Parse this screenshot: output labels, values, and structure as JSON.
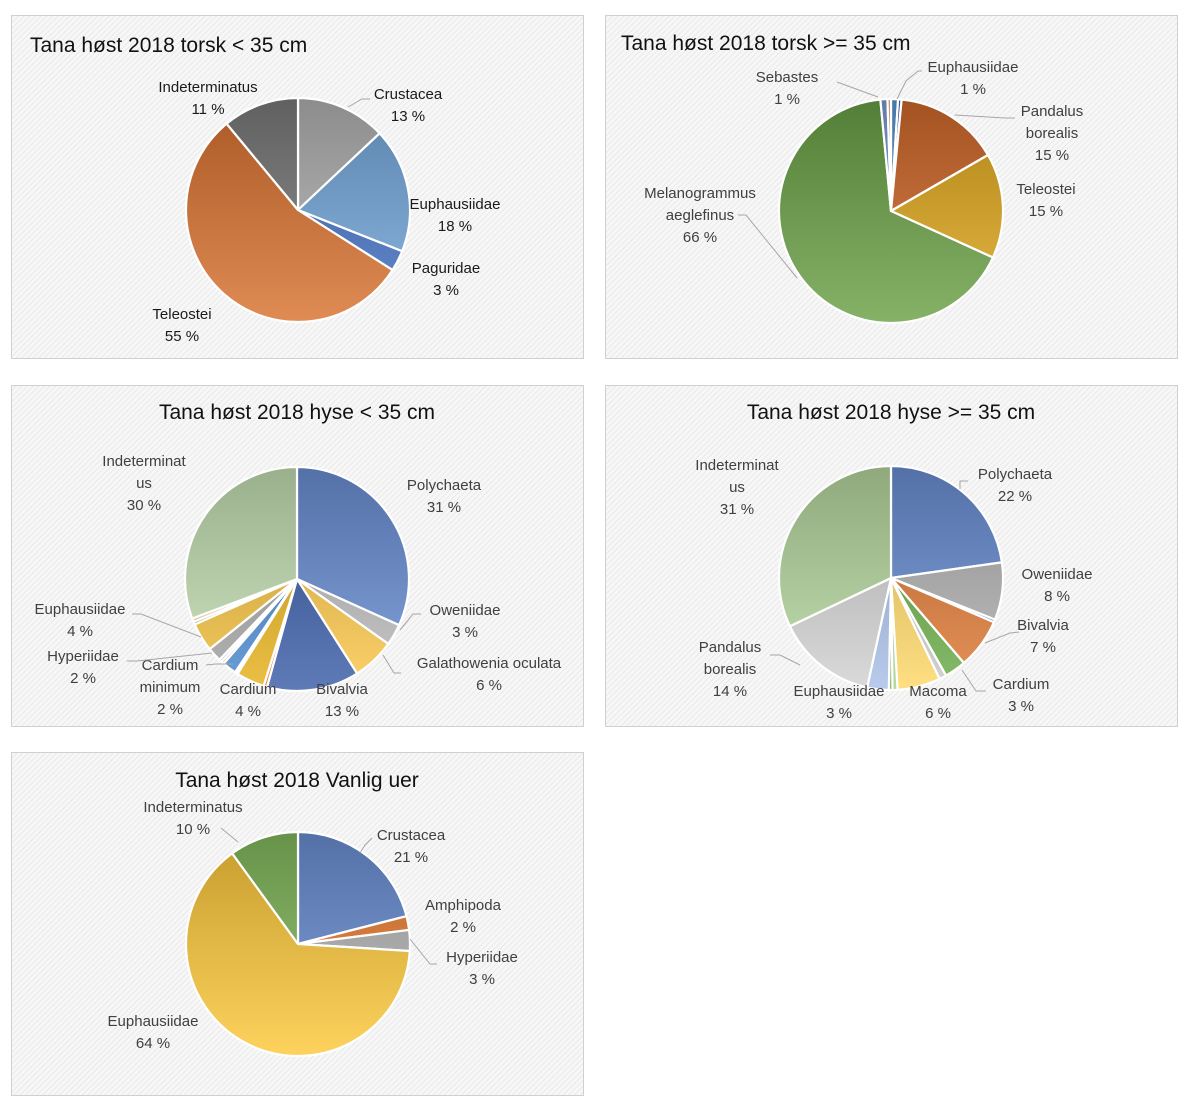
{
  "chart_data": [
    {
      "type": "pie",
      "title": "Tana høst 2018 torsk < 35 cm",
      "slices": [
        {
          "label": "Crustacea",
          "value": 13,
          "value_label": "13 %",
          "color": "#b4b4b4"
        },
        {
          "label": "Euphausiidae",
          "value": 18,
          "value_label": "18 %",
          "color": "#74a8dc"
        },
        {
          "label": "Paguridae",
          "value": 3,
          "value_label": "3 %",
          "color": "#4472c4"
        },
        {
          "label": "Teleostei",
          "value": 55,
          "value_label": "55 %",
          "color": "#d9712f"
        },
        {
          "label": "Indeterminatus",
          "value": 11,
          "value_label": "11 %",
          "color": "#7b7b7b"
        }
      ]
    },
    {
      "type": "pie",
      "title": "Tana høst 2018 torsk >= 35 cm",
      "slices": [
        {
          "label": "Euphausiidae",
          "value": 1,
          "value_label": "1 %",
          "color": "#5b9bd5"
        },
        {
          "label": "",
          "value": 0.5,
          "value_label": "",
          "color": "#4472c4"
        },
        {
          "label": "Pandalus borealis",
          "value": 15,
          "value_label": "15 %",
          "color": "#d2692a"
        },
        {
          "label": "Teleostei",
          "value": 15,
          "value_label": "15 %",
          "color": "#e0a91c"
        },
        {
          "label": "Melanogrammus aeglefinus",
          "value": 66,
          "value_label": "66 %",
          "color": "#6aa146"
        },
        {
          "label": "Sebastes",
          "value": 1,
          "value_label": "1 %",
          "color": "#7c9fd9"
        },
        {
          "label": "",
          "value": 0.5,
          "value_label": "",
          "color": "#f4b183"
        }
      ]
    },
    {
      "type": "pie",
      "title": "Tana høst 2018 hyse < 35 cm",
      "slices": [
        {
          "label": "Polychaeta",
          "value": 31,
          "value_label": "31 %",
          "color": "#6a8fd6"
        },
        {
          "label": "Oweniidae",
          "value": 3,
          "value_label": "3 %",
          "color": "#bdbdbd"
        },
        {
          "label": "Galathowenia oculata",
          "value": 6,
          "value_label": "6 %",
          "color": "#fcc84a"
        },
        {
          "label": "Bivalvia",
          "value": 13,
          "value_label": "13 %",
          "color": "#3b5ea8"
        },
        {
          "label": "",
          "value": 0.5,
          "value_label": "",
          "color": "#ed7d31"
        },
        {
          "label": "Cardium",
          "value": 4,
          "value_label": "4 %",
          "color": "#e8b21c"
        },
        {
          "label": "",
          "value": 0.4,
          "value_label": "",
          "color": "#ffffff"
        },
        {
          "label": "Cardium minimum",
          "value": 2,
          "value_label": "2 %",
          "color": "#4a8ad0"
        },
        {
          "label": "",
          "value": 0.4,
          "value_label": "",
          "color": "#f4b183"
        },
        {
          "label": "",
          "value": 0.4,
          "value_label": "",
          "color": "#9dc3e6"
        },
        {
          "label": "Hyperiidae",
          "value": 2,
          "value_label": "2 %",
          "color": "#a5a5a5"
        },
        {
          "label": "Euphausiidae",
          "value": 4,
          "value_label": "4 %",
          "color": "#f2c03d"
        },
        {
          "label": "",
          "value": 0.4,
          "value_label": "",
          "color": "#70ad47"
        },
        {
          "label": "",
          "value": 0.5,
          "value_label": "",
          "color": "#f8cbad"
        },
        {
          "label": "Indeterminatus",
          "value": 30,
          "value_label": "30 %",
          "color": "#c5e0b4"
        }
      ]
    },
    {
      "type": "pie",
      "title": "Tana høst 2018 hyse >= 35 cm",
      "slices": [
        {
          "label": "Polychaeta",
          "value": 22,
          "value_label": "22 %",
          "color": "#6a8fd6"
        },
        {
          "label": "Oweniidae",
          "value": 8,
          "value_label": "8 %",
          "color": "#b3b3b3"
        },
        {
          "label": "",
          "value": 0.4,
          "value_label": "",
          "color": "#4472c4"
        },
        {
          "label": "Bivalvia",
          "value": 7,
          "value_label": "7 %",
          "color": "#e07a36"
        },
        {
          "label": "Cardium",
          "value": 3,
          "value_label": "3 %",
          "color": "#6aad48"
        },
        {
          "label": "",
          "value": 1,
          "value_label": "",
          "color": "#c9c9c9"
        },
        {
          "label": "Macoma",
          "value": 6,
          "value_label": "6 %",
          "color": "#ffd866"
        },
        {
          "label": "",
          "value": 0.7,
          "value_label": "",
          "color": "#a9d18e"
        },
        {
          "label": "",
          "value": 0.5,
          "value_label": "",
          "color": "#70ad47"
        },
        {
          "label": "Euphausiidae",
          "value": 3,
          "value_label": "3 %",
          "color": "#a9c0e8"
        },
        {
          "label": "Pandalus borealis",
          "value": 14,
          "value_label": "14 %",
          "color": "#d2d2d2"
        },
        {
          "label": "Indeterminatus",
          "value": 31,
          "value_label": "31 %",
          "color": "#b7d9a0"
        }
      ]
    },
    {
      "type": "pie",
      "title": "Tana høst 2018 Vanlig uer",
      "slices": [
        {
          "label": "Crustacea",
          "value": 21,
          "value_label": "21 %",
          "color": "#6a8fd6"
        },
        {
          "label": "Amphipoda",
          "value": 2,
          "value_label": "2 %",
          "color": "#ed7d31"
        },
        {
          "label": "Hyperiidae",
          "value": 3,
          "value_label": "3 %",
          "color": "#b5b5b5"
        },
        {
          "label": "Euphausiidae",
          "value": 64,
          "value_label": "64 %",
          "color": "#fdc83a"
        },
        {
          "label": "Indeterminatus",
          "value": 10,
          "value_label": "10 %",
          "color": "#84bb5e"
        }
      ]
    }
  ]
}
